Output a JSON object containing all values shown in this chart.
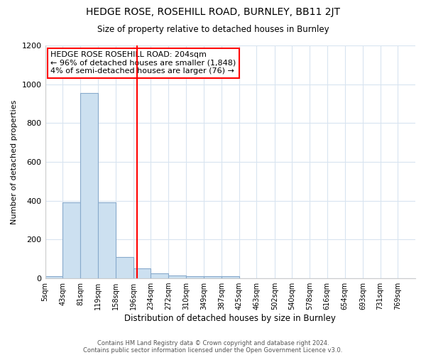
{
  "title1": "HEDGE ROSE, ROSEHILL ROAD, BURNLEY, BB11 2JT",
  "title2": "Size of property relative to detached houses in Burnley",
  "xlabel": "Distribution of detached houses by size in Burnley",
  "ylabel": "Number of detached properties",
  "bins": [
    5,
    43,
    81,
    119,
    158,
    196,
    234,
    272,
    310,
    349,
    387,
    425,
    463,
    502,
    540,
    578,
    616,
    654,
    693,
    731,
    769,
    807
  ],
  "counts": [
    10,
    390,
    955,
    390,
    110,
    50,
    25,
    15,
    10,
    10,
    10,
    0,
    0,
    0,
    0,
    0,
    0,
    0,
    0,
    0,
    0
  ],
  "bar_color": "#cce0f0",
  "bar_edge_color": "#88aacc",
  "red_line_x": 204,
  "ylim": [
    0,
    1200
  ],
  "yticks": [
    0,
    200,
    400,
    600,
    800,
    1000,
    1200
  ],
  "tick_labels": [
    "5sqm",
    "43sqm",
    "81sqm",
    "119sqm",
    "158sqm",
    "196sqm",
    "234sqm",
    "272sqm",
    "310sqm",
    "349sqm",
    "387sqm",
    "425sqm",
    "463sqm",
    "502sqm",
    "540sqm",
    "578sqm",
    "616sqm",
    "654sqm",
    "693sqm",
    "731sqm",
    "769sqm"
  ],
  "annotation_text": "HEDGE ROSE ROSEHILL ROAD: 204sqm\n← 96% of detached houses are smaller (1,848)\n4% of semi-detached houses are larger (76) →",
  "footer1": "Contains HM Land Registry data © Crown copyright and database right 2024.",
  "footer2": "Contains public sector information licensed under the Open Government Licence v3.0.",
  "bg_color": "#ffffff",
  "plot_bg_color": "#ffffff",
  "grid_color": "#d8e4f0"
}
